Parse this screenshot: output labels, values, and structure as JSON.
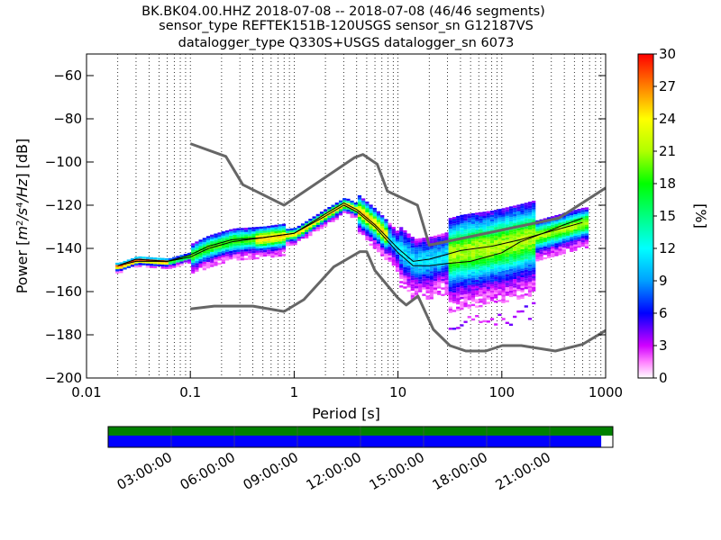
{
  "title": {
    "line1": "BK.BK04.00.HHZ   2018-07-08 -- 2018-07-08  (46/46 segments)",
    "line2": "sensor_type REFTEK151B-120USGS sensor_sn G12187VS",
    "line3": "datalogger_type Q330S+USGS datalogger_sn 6073"
  },
  "chart_data": {
    "type": "heatmap",
    "xlabel": "Period [s]",
    "ylabel": "Power [m²/s⁴/Hz] [dB]",
    "xscale": "log",
    "xlim": [
      0.01,
      1000
    ],
    "ylim": [
      -200,
      -50
    ],
    "x_ticks": [
      0.01,
      0.1,
      1,
      10,
      100,
      1000
    ],
    "x_tick_labels": [
      "0.01",
      "0.1",
      "1",
      "10",
      "100",
      "1000"
    ],
    "y_ticks": [
      -200,
      -180,
      -160,
      -140,
      -120,
      -100,
      -80,
      -60
    ],
    "y_tick_labels": [
      "−200",
      "−180",
      "−160",
      "−140",
      "−120",
      "−100",
      "−80",
      "−60"
    ],
    "grid": "dotted vertical",
    "colorbar": {
      "label": "[%]",
      "min": 0,
      "max": 30,
      "ticks": [
        0,
        3,
        6,
        9,
        12,
        15,
        18,
        21,
        24,
        27,
        30
      ],
      "tick_labels": [
        "0",
        "3",
        "6",
        "9",
        "12",
        "15",
        "18",
        "21",
        "24",
        "27",
        "30"
      ]
    },
    "noise_model_high": [
      [
        0.1,
        -91.5
      ],
      [
        0.22,
        -97.4
      ],
      [
        0.32,
        -110.5
      ],
      [
        0.8,
        -120
      ],
      [
        3.8,
        -98
      ],
      [
        4.6,
        -96.5
      ],
      [
        6.3,
        -101
      ],
      [
        7.9,
        -113.5
      ],
      [
        15.4,
        -120
      ],
      [
        20,
        -138.5
      ],
      [
        354,
        -126
      ],
      [
        1000,
        -112
      ]
    ],
    "noise_model_low": [
      [
        0.1,
        -168
      ],
      [
        0.17,
        -166.7
      ],
      [
        0.4,
        -166.7
      ],
      [
        0.8,
        -169.2
      ],
      [
        1.24,
        -163.7
      ],
      [
        2.4,
        -148.6
      ],
      [
        4.3,
        -141.5
      ],
      [
        5.0,
        -141.5
      ],
      [
        6.0,
        -150.2
      ],
      [
        10,
        -163
      ],
      [
        12,
        -166.2
      ],
      [
        15.6,
        -162.1
      ],
      [
        21.9,
        -177.5
      ],
      [
        31.6,
        -185
      ],
      [
        45,
        -187.5
      ],
      [
        70,
        -187.5
      ],
      [
        101,
        -185
      ],
      [
        154,
        -185
      ],
      [
        328,
        -187.5
      ],
      [
        600,
        -184.4
      ],
      [
        1000,
        -178
      ]
    ],
    "median_curve": [
      [
        0.02,
        -148
      ],
      [
        0.03,
        -146
      ],
      [
        0.06,
        -146
      ],
      [
        0.1,
        -144
      ],
      [
        0.15,
        -140
      ],
      [
        0.25,
        -137
      ],
      [
        0.5,
        -135
      ],
      [
        1,
        -133
      ],
      [
        2,
        -125
      ],
      [
        3,
        -120
      ],
      [
        4,
        -123
      ],
      [
        6,
        -130
      ],
      [
        10,
        -142
      ],
      [
        14,
        -148
      ],
      [
        20,
        -148
      ],
      [
        30,
        -147
      ],
      [
        50,
        -146
      ],
      [
        100,
        -142
      ],
      [
        150,
        -137
      ],
      [
        250,
        -133
      ],
      [
        400,
        -129
      ],
      [
        600,
        -126
      ]
    ],
    "mode_curve": [
      [
        0.02,
        -148
      ],
      [
        0.03,
        -145
      ],
      [
        0.06,
        -146
      ],
      [
        0.1,
        -143
      ],
      [
        0.15,
        -139
      ],
      [
        0.25,
        -136
      ],
      [
        0.5,
        -135
      ],
      [
        1,
        -133
      ],
      [
        2,
        -124
      ],
      [
        3,
        -119
      ],
      [
        4,
        -122
      ],
      [
        6,
        -129
      ],
      [
        10,
        -140
      ],
      [
        14,
        -146
      ],
      [
        20,
        -145
      ],
      [
        40,
        -141
      ],
      [
        80,
        -139
      ],
      [
        150,
        -136
      ],
      [
        300,
        -132
      ],
      [
        600,
        -128
      ]
    ]
  },
  "timeline": {
    "labels": [
      "03:00:00",
      "06:00:00",
      "09:00:00",
      "12:00:00",
      "15:00:00",
      "18:00:00",
      "21:00:00"
    ],
    "coverage_color": "#0000ff",
    "data_color": "#008000",
    "coverage_fraction": 0.977
  }
}
